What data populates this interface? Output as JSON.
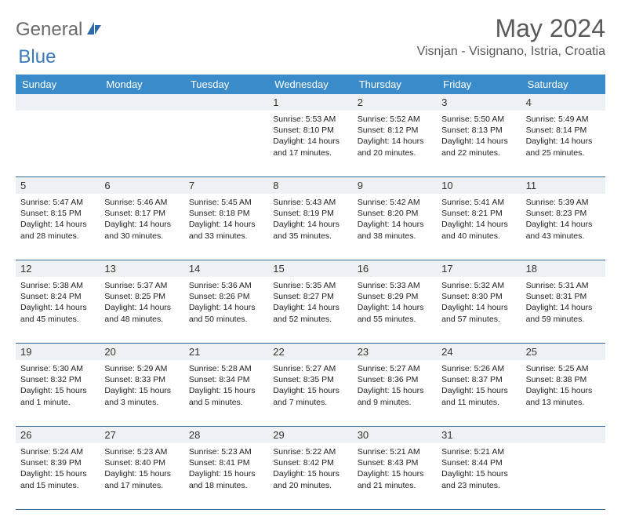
{
  "brand": {
    "name1": "General",
    "name2": "Blue"
  },
  "title": "May 2024",
  "location": "Visnjan - Visignano, Istria, Croatia",
  "colors": {
    "header_bg": "#3a8bc9",
    "border": "#3a6a9a",
    "daynum_bg": "#eef1f4",
    "logo_gray": "#6a6a6a",
    "logo_blue": "#3a7ab8"
  },
  "day_labels": [
    "Sunday",
    "Monday",
    "Tuesday",
    "Wednesday",
    "Thursday",
    "Friday",
    "Saturday"
  ],
  "weeks": [
    [
      {
        "num": "",
        "sunrise": "",
        "sunset": "",
        "daylight": ""
      },
      {
        "num": "",
        "sunrise": "",
        "sunset": "",
        "daylight": ""
      },
      {
        "num": "",
        "sunrise": "",
        "sunset": "",
        "daylight": ""
      },
      {
        "num": "1",
        "sunrise": "Sunrise: 5:53 AM",
        "sunset": "Sunset: 8:10 PM",
        "daylight": "Daylight: 14 hours and 17 minutes."
      },
      {
        "num": "2",
        "sunrise": "Sunrise: 5:52 AM",
        "sunset": "Sunset: 8:12 PM",
        "daylight": "Daylight: 14 hours and 20 minutes."
      },
      {
        "num": "3",
        "sunrise": "Sunrise: 5:50 AM",
        "sunset": "Sunset: 8:13 PM",
        "daylight": "Daylight: 14 hours and 22 minutes."
      },
      {
        "num": "4",
        "sunrise": "Sunrise: 5:49 AM",
        "sunset": "Sunset: 8:14 PM",
        "daylight": "Daylight: 14 hours and 25 minutes."
      }
    ],
    [
      {
        "num": "5",
        "sunrise": "Sunrise: 5:47 AM",
        "sunset": "Sunset: 8:15 PM",
        "daylight": "Daylight: 14 hours and 28 minutes."
      },
      {
        "num": "6",
        "sunrise": "Sunrise: 5:46 AM",
        "sunset": "Sunset: 8:17 PM",
        "daylight": "Daylight: 14 hours and 30 minutes."
      },
      {
        "num": "7",
        "sunrise": "Sunrise: 5:45 AM",
        "sunset": "Sunset: 8:18 PM",
        "daylight": "Daylight: 14 hours and 33 minutes."
      },
      {
        "num": "8",
        "sunrise": "Sunrise: 5:43 AM",
        "sunset": "Sunset: 8:19 PM",
        "daylight": "Daylight: 14 hours and 35 minutes."
      },
      {
        "num": "9",
        "sunrise": "Sunrise: 5:42 AM",
        "sunset": "Sunset: 8:20 PM",
        "daylight": "Daylight: 14 hours and 38 minutes."
      },
      {
        "num": "10",
        "sunrise": "Sunrise: 5:41 AM",
        "sunset": "Sunset: 8:21 PM",
        "daylight": "Daylight: 14 hours and 40 minutes."
      },
      {
        "num": "11",
        "sunrise": "Sunrise: 5:39 AM",
        "sunset": "Sunset: 8:23 PM",
        "daylight": "Daylight: 14 hours and 43 minutes."
      }
    ],
    [
      {
        "num": "12",
        "sunrise": "Sunrise: 5:38 AM",
        "sunset": "Sunset: 8:24 PM",
        "daylight": "Daylight: 14 hours and 45 minutes."
      },
      {
        "num": "13",
        "sunrise": "Sunrise: 5:37 AM",
        "sunset": "Sunset: 8:25 PM",
        "daylight": "Daylight: 14 hours and 48 minutes."
      },
      {
        "num": "14",
        "sunrise": "Sunrise: 5:36 AM",
        "sunset": "Sunset: 8:26 PM",
        "daylight": "Daylight: 14 hours and 50 minutes."
      },
      {
        "num": "15",
        "sunrise": "Sunrise: 5:35 AM",
        "sunset": "Sunset: 8:27 PM",
        "daylight": "Daylight: 14 hours and 52 minutes."
      },
      {
        "num": "16",
        "sunrise": "Sunrise: 5:33 AM",
        "sunset": "Sunset: 8:29 PM",
        "daylight": "Daylight: 14 hours and 55 minutes."
      },
      {
        "num": "17",
        "sunrise": "Sunrise: 5:32 AM",
        "sunset": "Sunset: 8:30 PM",
        "daylight": "Daylight: 14 hours and 57 minutes."
      },
      {
        "num": "18",
        "sunrise": "Sunrise: 5:31 AM",
        "sunset": "Sunset: 8:31 PM",
        "daylight": "Daylight: 14 hours and 59 minutes."
      }
    ],
    [
      {
        "num": "19",
        "sunrise": "Sunrise: 5:30 AM",
        "sunset": "Sunset: 8:32 PM",
        "daylight": "Daylight: 15 hours and 1 minute."
      },
      {
        "num": "20",
        "sunrise": "Sunrise: 5:29 AM",
        "sunset": "Sunset: 8:33 PM",
        "daylight": "Daylight: 15 hours and 3 minutes."
      },
      {
        "num": "21",
        "sunrise": "Sunrise: 5:28 AM",
        "sunset": "Sunset: 8:34 PM",
        "daylight": "Daylight: 15 hours and 5 minutes."
      },
      {
        "num": "22",
        "sunrise": "Sunrise: 5:27 AM",
        "sunset": "Sunset: 8:35 PM",
        "daylight": "Daylight: 15 hours and 7 minutes."
      },
      {
        "num": "23",
        "sunrise": "Sunrise: 5:27 AM",
        "sunset": "Sunset: 8:36 PM",
        "daylight": "Daylight: 15 hours and 9 minutes."
      },
      {
        "num": "24",
        "sunrise": "Sunrise: 5:26 AM",
        "sunset": "Sunset: 8:37 PM",
        "daylight": "Daylight: 15 hours and 11 minutes."
      },
      {
        "num": "25",
        "sunrise": "Sunrise: 5:25 AM",
        "sunset": "Sunset: 8:38 PM",
        "daylight": "Daylight: 15 hours and 13 minutes."
      }
    ],
    [
      {
        "num": "26",
        "sunrise": "Sunrise: 5:24 AM",
        "sunset": "Sunset: 8:39 PM",
        "daylight": "Daylight: 15 hours and 15 minutes."
      },
      {
        "num": "27",
        "sunrise": "Sunrise: 5:23 AM",
        "sunset": "Sunset: 8:40 PM",
        "daylight": "Daylight: 15 hours and 17 minutes."
      },
      {
        "num": "28",
        "sunrise": "Sunrise: 5:23 AM",
        "sunset": "Sunset: 8:41 PM",
        "daylight": "Daylight: 15 hours and 18 minutes."
      },
      {
        "num": "29",
        "sunrise": "Sunrise: 5:22 AM",
        "sunset": "Sunset: 8:42 PM",
        "daylight": "Daylight: 15 hours and 20 minutes."
      },
      {
        "num": "30",
        "sunrise": "Sunrise: 5:21 AM",
        "sunset": "Sunset: 8:43 PM",
        "daylight": "Daylight: 15 hours and 21 minutes."
      },
      {
        "num": "31",
        "sunrise": "Sunrise: 5:21 AM",
        "sunset": "Sunset: 8:44 PM",
        "daylight": "Daylight: 15 hours and 23 minutes."
      },
      {
        "num": "",
        "sunrise": "",
        "sunset": "",
        "daylight": ""
      }
    ]
  ]
}
